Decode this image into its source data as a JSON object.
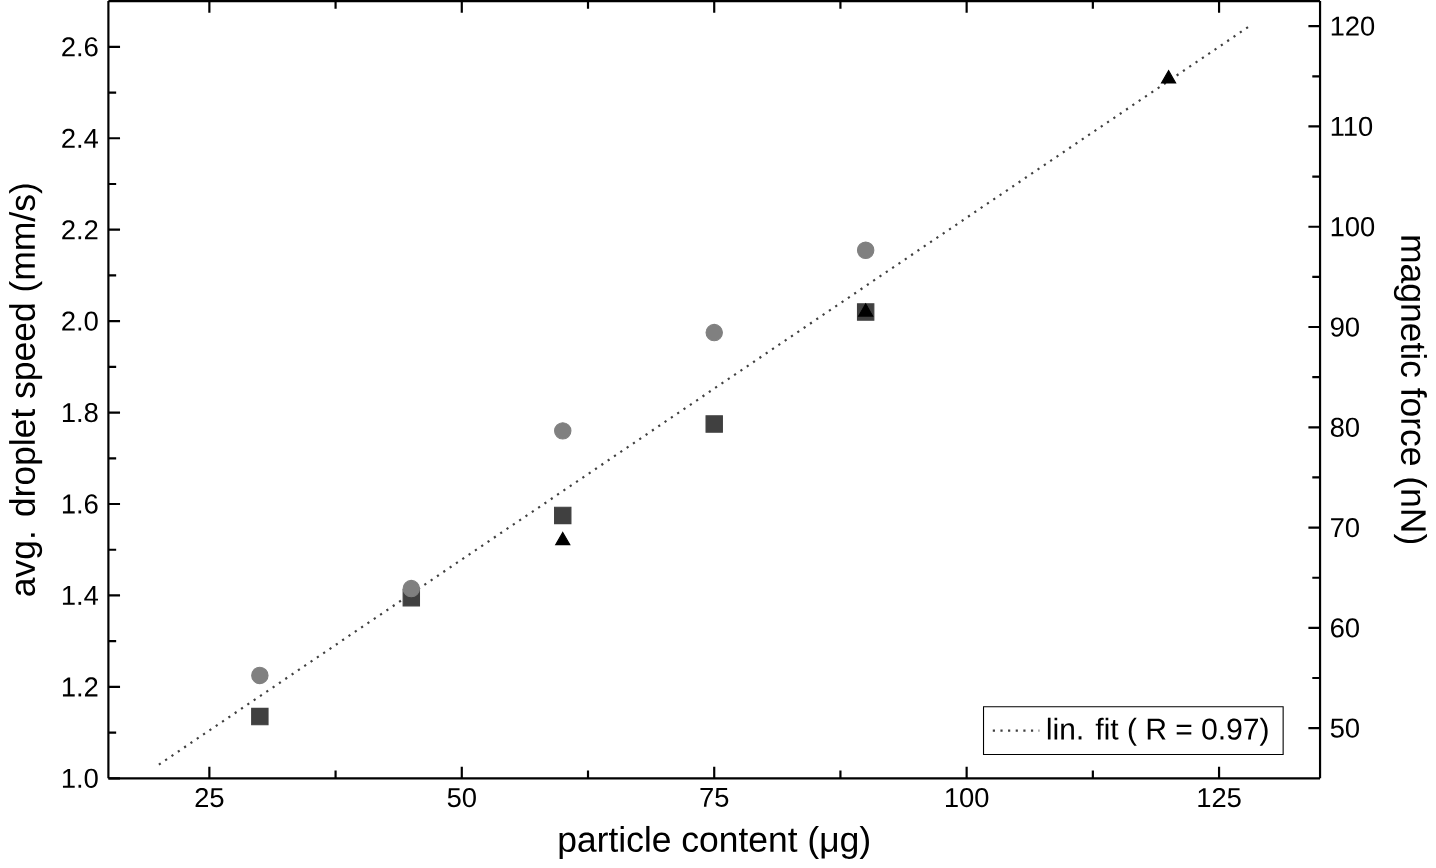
{
  "chart_data": {
    "type": "scatter",
    "xlabel": "particle content (μg)",
    "ylabel": "avg. droplet speed (mm/s)",
    "y2label": "magnetic force (nN)",
    "xlim": [
      15,
      135
    ],
    "xticks": [
      25,
      50,
      75,
      100,
      125
    ],
    "ylim": [
      1.0,
      2.7
    ],
    "yticks": [
      {
        "value": 1.0,
        "label": "1.0"
      },
      1.2,
      1.4,
      1.6,
      1.8,
      {
        "value": 2.0,
        "label": "2.0"
      },
      2.2,
      2.4,
      2.6
    ],
    "y2lim": [
      45,
      122.5
    ],
    "y2ticks": [
      50,
      60,
      70,
      80,
      90,
      100,
      110,
      120
    ],
    "legend": "bottom right",
    "series": [
      {
        "marker": "square",
        "color": "#404040",
        "x": [
          30,
          45,
          60,
          75,
          90
        ],
        "values": [
          1.135,
          1.395,
          1.575,
          1.775,
          2.02
        ]
      },
      {
        "marker": "circle",
        "color": "#808080",
        "x": [
          30,
          45,
          60,
          75,
          90
        ],
        "values": [
          1.225,
          1.415,
          1.76,
          1.975,
          2.155
        ]
      },
      {
        "marker": "triangle",
        "color": "#000000",
        "x": [
          60,
          90,
          120
        ],
        "values": [
          1.52,
          2.02,
          2.53
        ]
      },
      {
        "type": "line",
        "name": "lin. fit ( R = 0.97)",
        "marker": "none",
        "line_style": "dotted",
        "color": "#404040",
        "x": [
          20,
          128
        ],
        "values": [
          1.03,
          2.645
        ]
      }
    ]
  }
}
